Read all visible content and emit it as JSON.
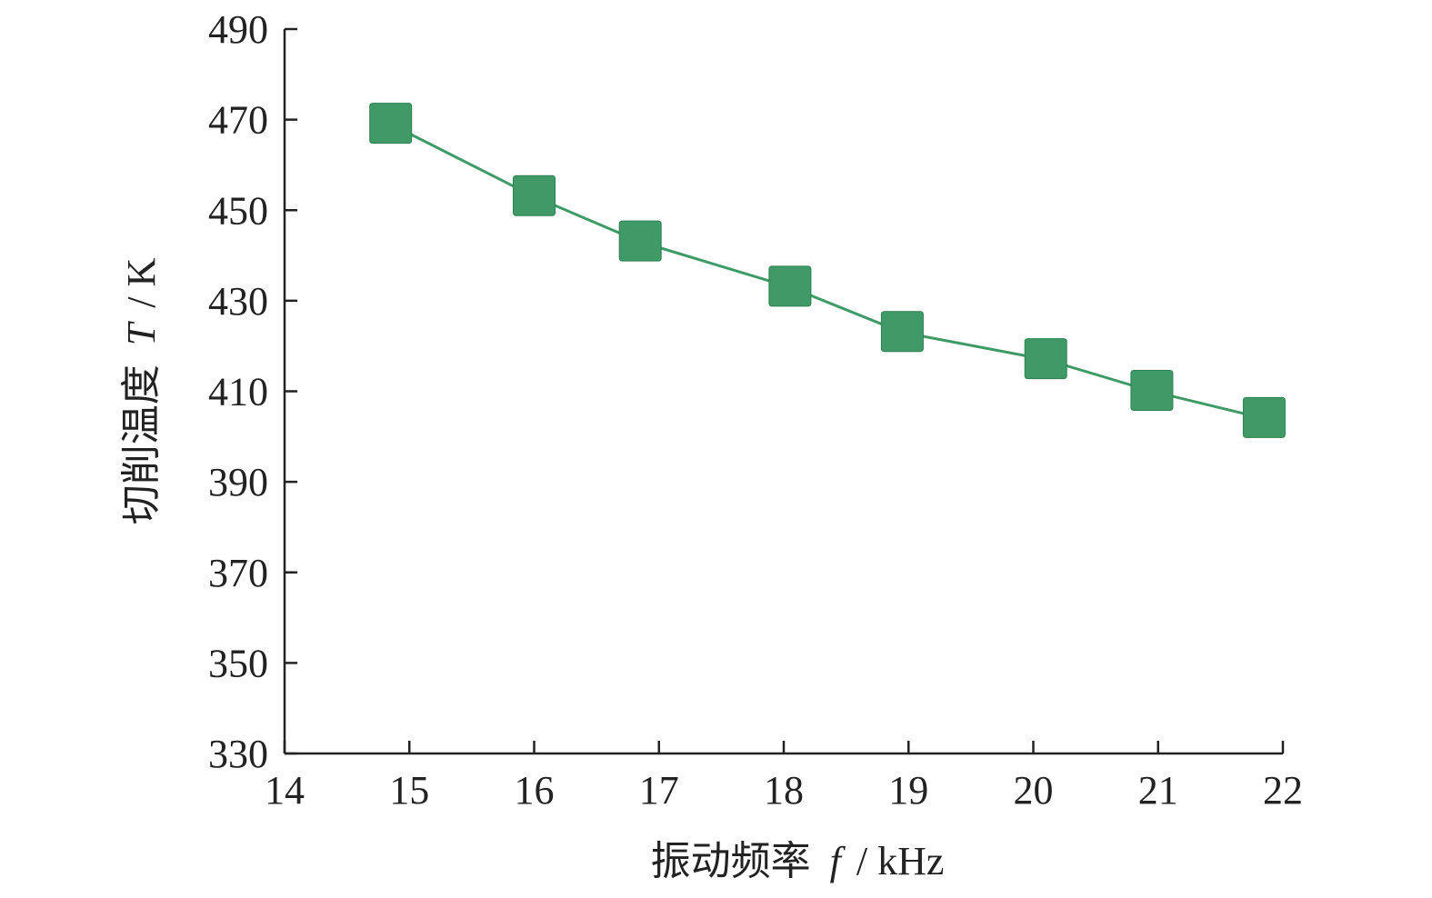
{
  "chart_data": {
    "type": "line",
    "x": [
      14.85,
      16.0,
      16.85,
      18.05,
      18.95,
      20.1,
      20.95,
      21.85
    ],
    "series": [
      {
        "values": [
          469,
          453,
          443,
          433,
          423,
          417,
          410,
          404
        ],
        "color": "#3F9A67",
        "marker": "square"
      }
    ],
    "xlim": [
      14,
      22
    ],
    "ylim": [
      330,
      490
    ],
    "xticks": [
      "14",
      "15",
      "16",
      "17",
      "18",
      "19",
      "20",
      "21",
      "22"
    ],
    "yticks": [
      "330",
      "350",
      "370",
      "390",
      "410",
      "430",
      "450",
      "470",
      "490"
    ],
    "xlabel": {
      "text": "振动频率",
      "symbol": "f",
      "unit": "/ kHz"
    },
    "ylabel": {
      "text": "切削温度",
      "symbol": "T",
      "unit": "/ K"
    },
    "grid": false,
    "legend": "none"
  }
}
